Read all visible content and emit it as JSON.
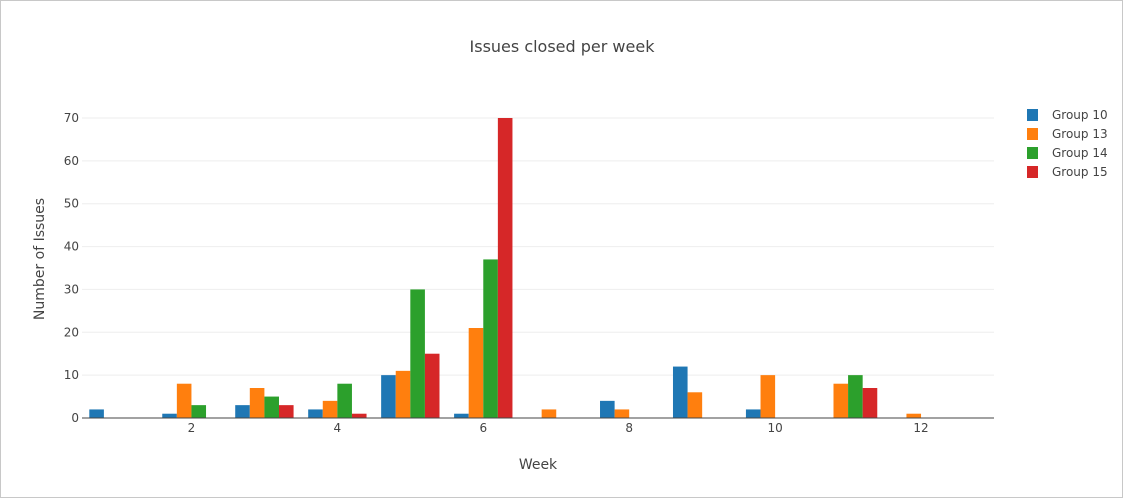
{
  "chart_data": {
    "type": "bar",
    "title": "Issues closed per week",
    "xlabel": "Week",
    "ylabel": "Number of Issues",
    "x": [
      1,
      2,
      3,
      4,
      5,
      6,
      7,
      8,
      9,
      10,
      11,
      12
    ],
    "xlim": [
      0.5,
      13
    ],
    "ylim": [
      0,
      70
    ],
    "x_ticks": [
      "2",
      "4",
      "6",
      "8",
      "10",
      "12"
    ],
    "y_ticks": [
      "0",
      "10",
      "20",
      "30",
      "40",
      "50",
      "60",
      "70"
    ],
    "grid": true,
    "legend_position": "top-right",
    "series": [
      {
        "name": "Group 10",
        "color": "#1f77b4",
        "values": [
          2,
          1,
          3,
          2,
          10,
          1,
          0,
          4,
          12,
          2,
          0,
          0
        ]
      },
      {
        "name": "Group 13",
        "color": "#ff7f0e",
        "values": [
          0,
          8,
          7,
          4,
          11,
          21,
          2,
          2,
          6,
          10,
          8,
          1
        ]
      },
      {
        "name": "Group 14",
        "color": "#2ca02c",
        "values": [
          0,
          3,
          5,
          8,
          30,
          37,
          0,
          0,
          0,
          0,
          10,
          0
        ]
      },
      {
        "name": "Group 15",
        "color": "#d62728",
        "values": [
          0,
          0,
          3,
          1,
          15,
          70,
          0,
          0,
          0,
          0,
          7,
          0
        ]
      }
    ]
  }
}
